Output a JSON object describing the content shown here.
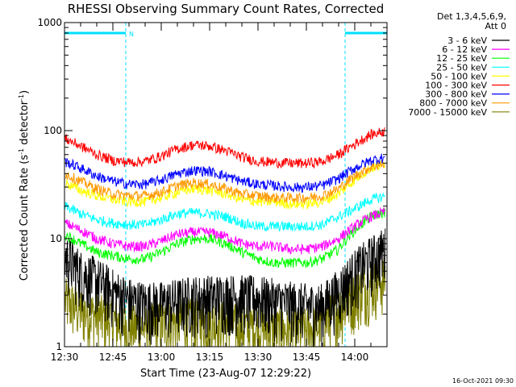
{
  "chart_data": {
    "type": "line",
    "title": "RHESSI Observing Summary Count Rates, Corrected",
    "xlabel": "Start Time (23-Aug-07 12:29:22)",
    "ylabel_main": "Corrected Count Rate (s",
    "ylabel_sup1": "-1",
    "ylabel_mid": " detector",
    "ylabel_sup2": "-1",
    "ylabel_end": ")",
    "yscale": "log",
    "ylim": [
      1,
      1000
    ],
    "xlim_minutes": [
      0,
      100
    ],
    "x_tick_labels": [
      "12:30",
      "12:45",
      "13:00",
      "13:15",
      "13:30",
      "13:45",
      "14:00"
    ],
    "x_tick_minutes": [
      0,
      15,
      30,
      45,
      60,
      75,
      90
    ],
    "y_tick_labels": [
      "1",
      "10",
      "100",
      "1000"
    ],
    "y_tick_values": [
      1,
      10,
      100,
      1000
    ],
    "legend_header": [
      "Det 1,3,4,5,6,9,",
      "Att 0"
    ],
    "legend_position": "right",
    "annotation_label": "N",
    "timestamp": "16-Oct-2021 09:30",
    "night_intervals_minutes": [
      [
        0,
        19
      ],
      [
        87,
        100
      ]
    ],
    "night_line_color": "#00e0ff",
    "series": [
      {
        "name": "3 - 6 keV",
        "color": "#000000",
        "x": [
          0,
          5,
          10,
          15,
          20,
          25,
          30,
          40,
          50,
          60,
          70,
          75,
          80,
          85,
          90,
          95,
          100
        ],
        "y": [
          6.5,
          4.5,
          3.8,
          3.0,
          2.5,
          2.3,
          2.3,
          2.6,
          2.7,
          2.6,
          2.3,
          2.2,
          2.2,
          3.0,
          4.5,
          6.0,
          7.5
        ]
      },
      {
        "name": "6 - 12 keV",
        "color": "#ff00ff",
        "x": [
          0,
          5,
          10,
          15,
          20,
          25,
          30,
          35,
          40,
          45,
          50,
          55,
          60,
          65,
          70,
          75,
          80,
          85,
          90,
          95,
          100
        ],
        "y": [
          14,
          12,
          10,
          9,
          8.5,
          8.5,
          9.5,
          11,
          11.5,
          11.5,
          10.5,
          9,
          8.5,
          8.5,
          8,
          8,
          8.5,
          10,
          13,
          16,
          18
        ]
      },
      {
        "name": "12 - 25 keV",
        "color": "#00ff00",
        "x": [
          0,
          5,
          10,
          15,
          20,
          25,
          30,
          35,
          40,
          45,
          50,
          55,
          60,
          65,
          70,
          75,
          80,
          85,
          90,
          95,
          100
        ],
        "y": [
          11,
          9,
          7.5,
          7,
          6.5,
          6.5,
          7.5,
          9,
          10,
          10,
          9,
          7.5,
          6.5,
          6,
          6,
          6,
          6.5,
          8,
          12,
          16,
          18
        ]
      },
      {
        "name": "25 - 50 keV",
        "color": "#00ffff",
        "x": [
          0,
          5,
          10,
          15,
          20,
          25,
          30,
          35,
          40,
          45,
          50,
          55,
          60,
          65,
          70,
          75,
          80,
          85,
          90,
          95,
          100
        ],
        "y": [
          20,
          17,
          15,
          14,
          13.5,
          13.5,
          15,
          17,
          17.5,
          17,
          16,
          14,
          13,
          13,
          13,
          13,
          13.5,
          16,
          19,
          23,
          25
        ]
      },
      {
        "name": "50 - 100 keV",
        "color": "#ffff00",
        "x": [
          0,
          5,
          10,
          15,
          20,
          25,
          30,
          35,
          40,
          45,
          50,
          55,
          60,
          65,
          70,
          75,
          80,
          85,
          90,
          95,
          100
        ],
        "y": [
          33,
          28,
          25,
          23,
          22,
          22,
          24,
          27,
          29,
          28,
          26,
          23,
          22,
          22,
          21,
          21,
          22,
          26,
          35,
          45,
          50
        ]
      },
      {
        "name": "100 - 300 keV",
        "color": "#ff0000",
        "x": [
          0,
          5,
          10,
          15,
          20,
          25,
          30,
          35,
          40,
          45,
          50,
          55,
          60,
          65,
          70,
          75,
          80,
          85,
          90,
          95,
          100
        ],
        "y": [
          85,
          72,
          60,
          53,
          51,
          52,
          58,
          68,
          74,
          72,
          65,
          57,
          52,
          51,
          50,
          50,
          52,
          60,
          75,
          92,
          100
        ]
      },
      {
        "name": "300 - 800 keV",
        "color": "#0000ff",
        "x": [
          0,
          5,
          10,
          15,
          20,
          25,
          30,
          35,
          40,
          45,
          50,
          55,
          60,
          65,
          70,
          75,
          80,
          85,
          90,
          95,
          100
        ],
        "y": [
          52,
          45,
          38,
          34,
          32,
          32,
          35,
          40,
          43,
          42,
          38,
          34,
          32,
          31,
          30,
          30,
          31,
          36,
          45,
          53,
          57
        ]
      },
      {
        "name": "800 - 7000 keV",
        "color": "#ff9900",
        "x": [
          0,
          5,
          10,
          15,
          20,
          25,
          30,
          35,
          40,
          45,
          50,
          55,
          60,
          65,
          70,
          75,
          80,
          85,
          90,
          95,
          100
        ],
        "y": [
          40,
          34,
          29,
          26,
          25,
          25,
          27,
          31,
          33,
          32,
          29,
          26,
          25,
          24,
          24,
          24,
          25,
          29,
          38,
          46,
          50
        ]
      },
      {
        "name": "7000 - 15000 keV",
        "color": "#808000",
        "x": [
          0,
          5,
          10,
          15,
          20,
          25,
          30,
          35,
          40,
          45,
          50,
          55,
          60,
          65,
          70,
          75,
          80,
          85,
          90,
          95,
          100
        ],
        "y": [
          2.5,
          2.0,
          1.8,
          1.6,
          1.4,
          1.4,
          1.5,
          1.6,
          1.6,
          1.6,
          1.5,
          1.4,
          1.4,
          1.3,
          1.3,
          1.3,
          1.5,
          2.0,
          2.8,
          3.5,
          4.0
        ]
      }
    ]
  }
}
